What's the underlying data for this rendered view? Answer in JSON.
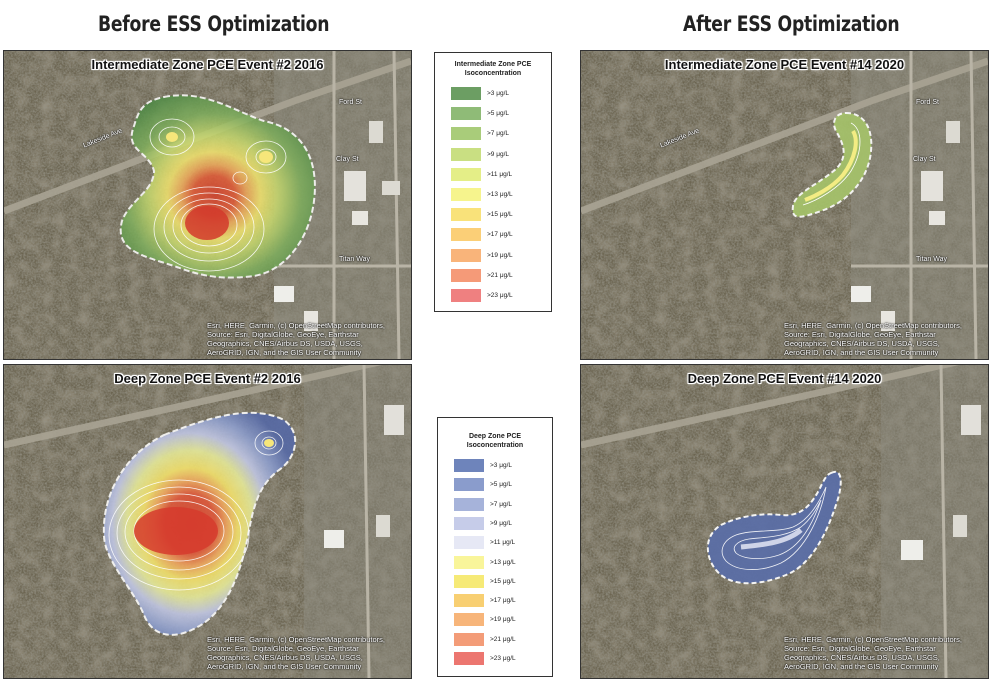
{
  "headers": {
    "before": "Before ESS Optimization",
    "after": "After ESS Optimization"
  },
  "maps": {
    "tl": {
      "title": "Intermediate Zone PCE Event #2 2016"
    },
    "tr": {
      "title": "Intermediate Zone PCE Event #14 2020"
    },
    "bl": {
      "title": "Deep Zone PCE Event #2 2016"
    },
    "br": {
      "title": "Deep Zone PCE Event #14 2020"
    }
  },
  "attribution": {
    "line1": "Esri, HERE, Garmin, (c) OpenStreetMap contributors,",
    "line2": "Source: Esri, DigitalGlobe, GeoEye, Earthstar",
    "line3": "Geographics, CNES/Airbus DS, USDA, USGS,",
    "line4": "AeroGRID, IGN, and the GIS User Community"
  },
  "streets": {
    "s1": "Lakeside Ave",
    "s2": "Clay St",
    "s3": "Titan Way",
    "s4": "Ford St",
    "s5": "Bravo St"
  },
  "legend_intermediate": {
    "title_line1": "Intermediate Zone PCE",
    "title_line2": "Isoconcentration",
    "items": [
      {
        "label": ">3 μg/L",
        "color": "#6c9e63"
      },
      {
        "label": ">5 μg/L",
        "color": "#8fbb77"
      },
      {
        "label": ">7 μg/L",
        "color": "#a9cc7a"
      },
      {
        "label": ">9 μg/L",
        "color": "#c9df82"
      },
      {
        "label": ">11 μg/L",
        "color": "#e4ee87"
      },
      {
        "label": ">13 μg/L",
        "color": "#f6f48d"
      },
      {
        "label": ">15 μg/L",
        "color": "#f9e27a"
      },
      {
        "label": ">17 μg/L",
        "color": "#fbcf77"
      },
      {
        "label": ">19 μg/L",
        "color": "#f9b47a"
      },
      {
        "label": ">21 μg/L",
        "color": "#f59a78"
      },
      {
        "label": ">23 μg/L",
        "color": "#ef8080"
      }
    ]
  },
  "legend_deep": {
    "title_line1": "Deep Zone PCE",
    "title_line2": "Isoconcentration",
    "items": [
      {
        "label": ">3 μg/L",
        "color": "#6e84bb"
      },
      {
        "label": ">5 μg/L",
        "color": "#8a9ccc"
      },
      {
        "label": ">7 μg/L",
        "color": "#a6b3da"
      },
      {
        "label": ">9 μg/L",
        "color": "#c6cce9"
      },
      {
        "label": ">11 μg/L",
        "color": "#e6e8f5"
      },
      {
        "label": ">13 μg/L",
        "color": "#f9f59a"
      },
      {
        "label": ">15 μg/L",
        "color": "#f6ea77"
      },
      {
        "label": ">17 μg/L",
        "color": "#f8cf72"
      },
      {
        "label": ">19 μg/L",
        "color": "#f7b57a"
      },
      {
        "label": ">21 μg/L",
        "color": "#f39c78"
      },
      {
        "label": ">23 μg/L",
        "color": "#ec7670"
      }
    ]
  }
}
